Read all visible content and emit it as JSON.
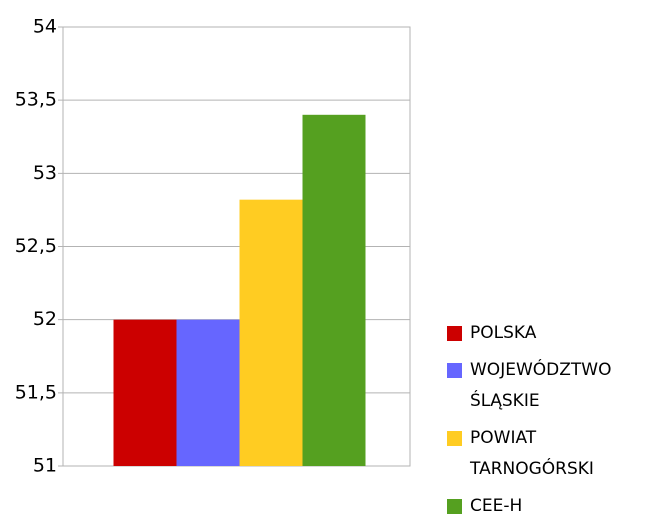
{
  "chart_data": {
    "type": "bar",
    "categories": [
      null
    ],
    "series": [
      {
        "name": "POLSKA",
        "color": "#cc0000",
        "values": [
          52
        ]
      },
      {
        "name": "WOJEWÓDZTWO ŚLĄSKIE",
        "color": "#6666ff",
        "values": [
          52
        ]
      },
      {
        "name": "POWIAT TARNOGÓRSKI",
        "color": "#ffcc22",
        "values": [
          52.82
        ]
      },
      {
        "name": "CEE-H",
        "color": "#55a020",
        "values": [
          53.4
        ]
      }
    ],
    "ylim": [
      51,
      54
    ],
    "yticks": [
      51,
      {
        "value": 51.5,
        "label": "51,5"
      },
      52,
      {
        "value": 52.5,
        "label": "52,5"
      },
      53,
      {
        "value": 53.5,
        "label": "53,5"
      },
      54
    ],
    "grid": true,
    "legend": "right"
  }
}
